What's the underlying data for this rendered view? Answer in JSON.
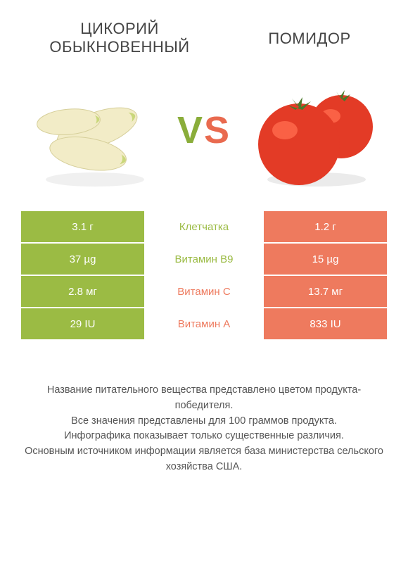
{
  "colors": {
    "left": "#9bbb44",
    "right": "#ee7a5e",
    "vs_left": "#8aad3a",
    "vs_right": "#e96a4f"
  },
  "title_left": "ЦИКОРИЙ ОБЫКНОВЕННЫЙ",
  "title_right": "ПОМИДОР",
  "vs_v": "V",
  "vs_s": "S",
  "rows": [
    {
      "left": "3.1 г",
      "mid": "Клетчатка",
      "right": "1.2 г",
      "winner": "left"
    },
    {
      "left": "37 µg",
      "mid": "Витамин B9",
      "right": "15 µg",
      "winner": "left"
    },
    {
      "left": "2.8 мг",
      "mid": "Витамин C",
      "right": "13.7 мг",
      "winner": "right"
    },
    {
      "left": "29 IU",
      "mid": "Витамин A",
      "right": "833 IU",
      "winner": "right"
    }
  ],
  "footer_lines": [
    "Название питательного вещества представлено цветом продукта-победителя.",
    "Все значения представлены для 100 граммов продукта.",
    "Инфографика показывает только существенные различия.",
    "Основным источником информации является база министерства сельского хозяйства США."
  ]
}
